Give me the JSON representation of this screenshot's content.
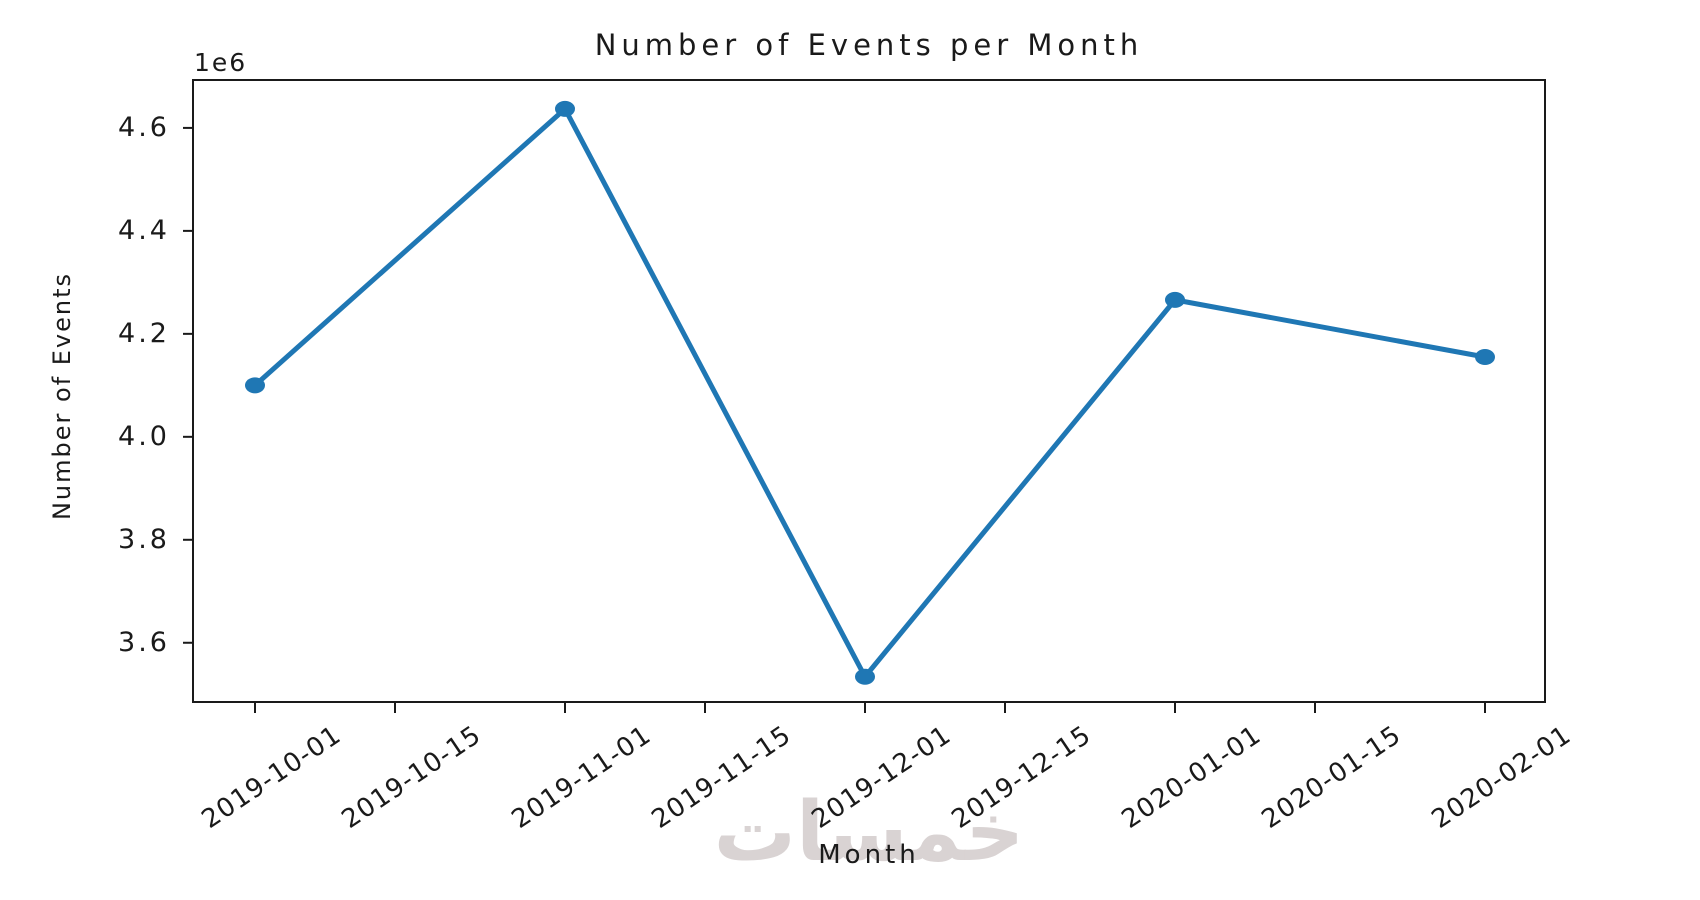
{
  "figure": {
    "title": "Number of Events per Month",
    "watermark_text": "خمسات",
    "background_color": "#ffffff"
  },
  "chart_data": {
    "type": "line",
    "title": "Number of Events per Month",
    "xlabel": "Month",
    "ylabel": "Number of Events",
    "y_offset_label": "1e6",
    "x": [
      "2019-10-01",
      "2019-11-01",
      "2019-12-01",
      "2020-01-01",
      "2020-02-01"
    ],
    "y": [
      4100000,
      4637000,
      3534000,
      4266000,
      4155000
    ],
    "x_tick_labels": [
      "2019-10-01",
      "2019-10-15",
      "2019-11-01",
      "2019-11-15",
      "2019-12-01",
      "2019-12-15",
      "2020-01-01",
      "2020-01-15",
      "2020-02-01"
    ],
    "y_tick_labels": [
      "3.6",
      "3.8",
      "4.0",
      "4.2",
      "4.4",
      "4.6"
    ],
    "y_tick_values": [
      3600000,
      3800000,
      4000000,
      4200000,
      4400000,
      4600000
    ],
    "ylim": [
      3483000,
      4695000
    ],
    "xlim_days_from_first": [
      -6.3,
      129.1
    ],
    "x_tick_rotation_deg": 34,
    "grid": false,
    "legend": null,
    "line_color": "#1f77b4",
    "marker": "o",
    "marker_color": "#1f77b4",
    "spine_color": "#1a1a1a",
    "text_color": "#1a1a1a",
    "watermark_color": "#d9d3d3"
  }
}
